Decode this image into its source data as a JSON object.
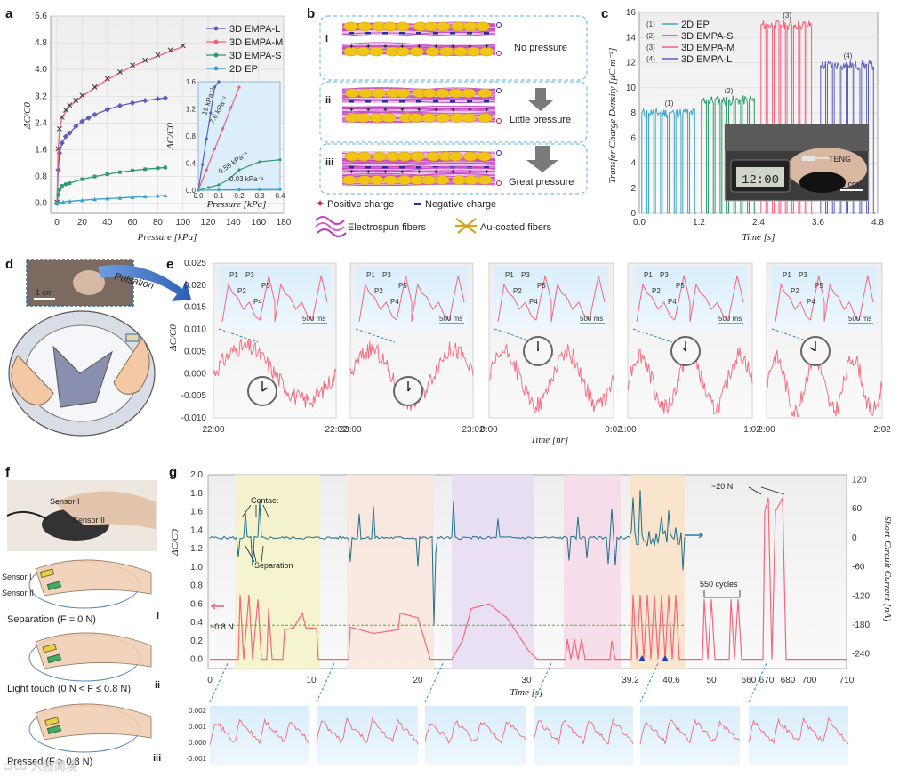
{
  "panels": {
    "a": "a",
    "b": "b",
    "c": "c",
    "d": "d",
    "e": "e",
    "f": "f",
    "g": "g"
  },
  "colors": {
    "blue": "#5b5fb8",
    "pink": "#f0607a",
    "green": "#2f9a6c",
    "cyan": "#3aa3c9",
    "teal": "#1f6f8b",
    "signal_red": "#ef6a7e",
    "axis_red": "#e0617a",
    "axis_blue": "#1f7fa8"
  },
  "chart_data": [
    {
      "id": "a",
      "type": "line",
      "title": "",
      "xlabel": "Pressure [kPa]",
      "ylabel": "ΔC/C0",
      "xlim": [
        -5,
        180
      ],
      "ylim": [
        -0.3,
        5.6
      ],
      "x_ticks": [
        "0",
        "20",
        "40",
        "60",
        "80",
        "100",
        "120",
        "140",
        "160",
        "180"
      ],
      "y_ticks": [
        "0.0",
        "0.8",
        "1.6",
        "2.4",
        "3.2",
        "4.0",
        "4.8",
        "5.6"
      ],
      "legend": [
        "3D EMPA-L",
        "3D EMPA-M",
        "3D EMPA-S",
        "2D EP"
      ],
      "series": [
        {
          "name": "3D EMPA-L",
          "x": [
            0,
            1,
            2,
            4,
            7,
            10,
            15,
            20,
            25,
            30,
            40,
            50,
            60,
            70,
            80,
            86
          ],
          "y": [
            0,
            1.0,
            1.5,
            1.8,
            2.0,
            2.1,
            2.3,
            2.45,
            2.55,
            2.65,
            2.8,
            2.92,
            3.0,
            3.07,
            3.12,
            3.15
          ]
        },
        {
          "name": "3D EMPA-M",
          "x": [
            0,
            1,
            2,
            4,
            7,
            10,
            15,
            20,
            30,
            40,
            50,
            60,
            70,
            80,
            90,
            100
          ],
          "y": [
            0,
            1.6,
            2.2,
            2.55,
            2.75,
            2.9,
            3.05,
            3.2,
            3.45,
            3.7,
            3.9,
            4.1,
            4.25,
            4.4,
            4.55,
            4.68
          ]
        },
        {
          "name": "3D EMPA-S",
          "x": [
            0,
            1,
            2,
            4,
            7,
            10,
            20,
            30,
            40,
            50,
            60,
            70,
            80,
            86
          ],
          "y": [
            0,
            0.25,
            0.42,
            0.52,
            0.57,
            0.6,
            0.72,
            0.8,
            0.87,
            0.93,
            0.98,
            1.02,
            1.05,
            1.07
          ]
        },
        {
          "name": "2D EP",
          "x": [
            0,
            2,
            5,
            10,
            20,
            30,
            40,
            50,
            60,
            70,
            80,
            86
          ],
          "y": [
            0,
            0.02,
            0.04,
            0.06,
            0.09,
            0.12,
            0.14,
            0.16,
            0.18,
            0.2,
            0.22,
            0.23
          ]
        }
      ],
      "inset": {
        "xlim": [
          0,
          0.4
        ],
        "ylim": [
          0,
          1.6
        ],
        "xlabel": "Pressure [kPa]",
        "ylabel": "ΔC/C0",
        "x_ticks": [
          "0.0",
          "0.1",
          "0.2",
          "0.3",
          "0.4"
        ],
        "y_ticks": [
          "0.0",
          "0.4",
          "0.8",
          "1.2",
          "1.6"
        ],
        "annotations": [
          "19 kPa⁻¹",
          "7.6 kPa⁻¹",
          "0.55 kPa⁻¹",
          "0.03 kPa⁻¹"
        ]
      }
    },
    {
      "id": "c",
      "type": "bar",
      "title": "",
      "xlabel": "Time [s]",
      "ylabel": "Transfer Charge Density [μC m⁻²]",
      "xlim": [
        0,
        4.8
      ],
      "ylim": [
        0,
        16
      ],
      "x_ticks": [
        "0.0",
        "1.2",
        "2.4",
        "3.6",
        "4.8"
      ],
      "y_ticks": [
        "0",
        "2",
        "4",
        "6",
        "8",
        "10",
        "12",
        "14",
        "16"
      ],
      "series": [
        {
          "name": "2D EP",
          "tag": "(1)",
          "start": 0.05,
          "end": 1.15,
          "peak": 8.0
        },
        {
          "name": "3D EMPA-S",
          "tag": "(2)",
          "start": 1.25,
          "end": 2.35,
          "peak": 9.0
        },
        {
          "name": "3D EMPA-M",
          "tag": "(3)",
          "start": 2.45,
          "end": 3.5,
          "peak": 15.0
        },
        {
          "name": "3D EMPA-L",
          "tag": "(4)",
          "start": 3.65,
          "end": 4.75,
          "peak": 11.8
        }
      ],
      "photo_labels": [
        "TENG",
        "2 cm"
      ]
    },
    {
      "id": "e",
      "type": "line",
      "xlabel": "Time [hr]",
      "ylabel": "ΔC/C0",
      "ylim": [
        -0.01,
        0.025
      ],
      "y_ticks": [
        "0.025",
        "0.020",
        "0.015",
        "0.010",
        "0.005",
        "0.000",
        "-0.005",
        "-0.010"
      ],
      "segments": [
        {
          "start": "22:00",
          "end": "22:02"
        },
        {
          "start": "23:00",
          "end": "23:02"
        },
        {
          "start": "0:00",
          "end": "0:02"
        },
        {
          "start": "1:00",
          "end": "1:02"
        },
        {
          "start": "2:00",
          "end": "2:02"
        }
      ],
      "inset_labels": [
        "P1",
        "P2",
        "P3",
        "P4",
        "P5"
      ],
      "scale_bar": "500 ms"
    },
    {
      "id": "g",
      "type": "line",
      "xlabel": "Time [s]",
      "ylabel_left": "ΔC/C0",
      "ylabel_right": "Short-Circuit Current [nA]",
      "x_ticks": [
        "0",
        "10",
        "20",
        "30",
        "39.2",
        "40.6",
        "50",
        "660",
        "670",
        "680",
        "700",
        "710"
      ],
      "y_ticks_left": [
        "0.0",
        "0.2",
        "0.4",
        "0.6",
        "0.8",
        "1.0",
        "1.2",
        "1.4",
        "1.6",
        "1.8",
        "2.0"
      ],
      "y_ticks_right": [
        "120",
        "60",
        "0",
        "-60",
        "-120",
        "-180",
        "-240"
      ],
      "ylim_left": [
        -0.1,
        2.0
      ],
      "ylim_right": [
        -270,
        130
      ],
      "annotations": [
        "Contact",
        "Separation",
        "~0.8 N",
        "550 cycles",
        "~20 N"
      ],
      "bottom_ticks": [
        "0.002",
        "0.001",
        "0.000",
        "-0.001"
      ]
    }
  ],
  "panel_b": {
    "rows": [
      "i",
      "ii",
      "iii"
    ],
    "labels": [
      "No pressure",
      "Little pressure",
      "Great pressure"
    ],
    "legend": [
      "Positive charge",
      "Negative charge",
      "Electrospun fibers",
      "Au-coated fibers"
    ]
  },
  "panel_d": {
    "scale": "1 cm",
    "arrow": "Pulsation"
  },
  "panel_f": {
    "photo_labels": [
      "Sensor I",
      "Sensor II"
    ],
    "sensor_labels": [
      "Sensor I",
      "Sensor II"
    ],
    "states": [
      {
        "roman": "i",
        "text": "Separation (F = 0 N)"
      },
      {
        "roman": "ii",
        "text": "Light touch (0 N < F ≤ 0.8 N)"
      },
      {
        "roman": "iii",
        "text": "Pressed (F > 0.8 N)"
      }
    ]
  },
  "watermark": "cfco 大物简境"
}
